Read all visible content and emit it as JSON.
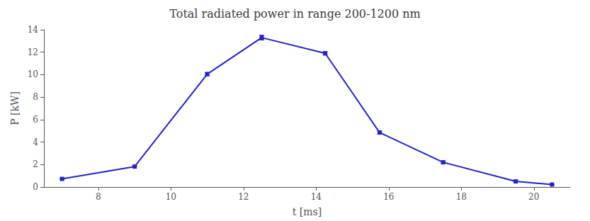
{
  "chart_data": {
    "type": "line",
    "title": "Total radiated power in range 200-1200 nm",
    "xlabel": "t [ms]",
    "ylabel": "P [kW]",
    "x": [
      7.0,
      9.0,
      11.0,
      12.5,
      14.25,
      15.75,
      17.5,
      19.5,
      20.5
    ],
    "values": [
      0.72,
      1.82,
      10.05,
      13.3,
      11.9,
      4.85,
      2.2,
      0.5,
      0.22
    ],
    "yerr": [
      0.0,
      0.0,
      0.15,
      0.22,
      0.15,
      0.15,
      0.12,
      0.0,
      0.0
    ],
    "color": "#2222cc",
    "marker": "square",
    "line_style": "solid",
    "xlim": [
      6.5,
      21.0
    ],
    "ylim": [
      0,
      14
    ],
    "xticks": [
      8,
      10,
      12,
      14,
      16,
      18,
      20
    ],
    "yticks": [
      0,
      2,
      4,
      6,
      8,
      10,
      12,
      14
    ],
    "grid": false
  }
}
